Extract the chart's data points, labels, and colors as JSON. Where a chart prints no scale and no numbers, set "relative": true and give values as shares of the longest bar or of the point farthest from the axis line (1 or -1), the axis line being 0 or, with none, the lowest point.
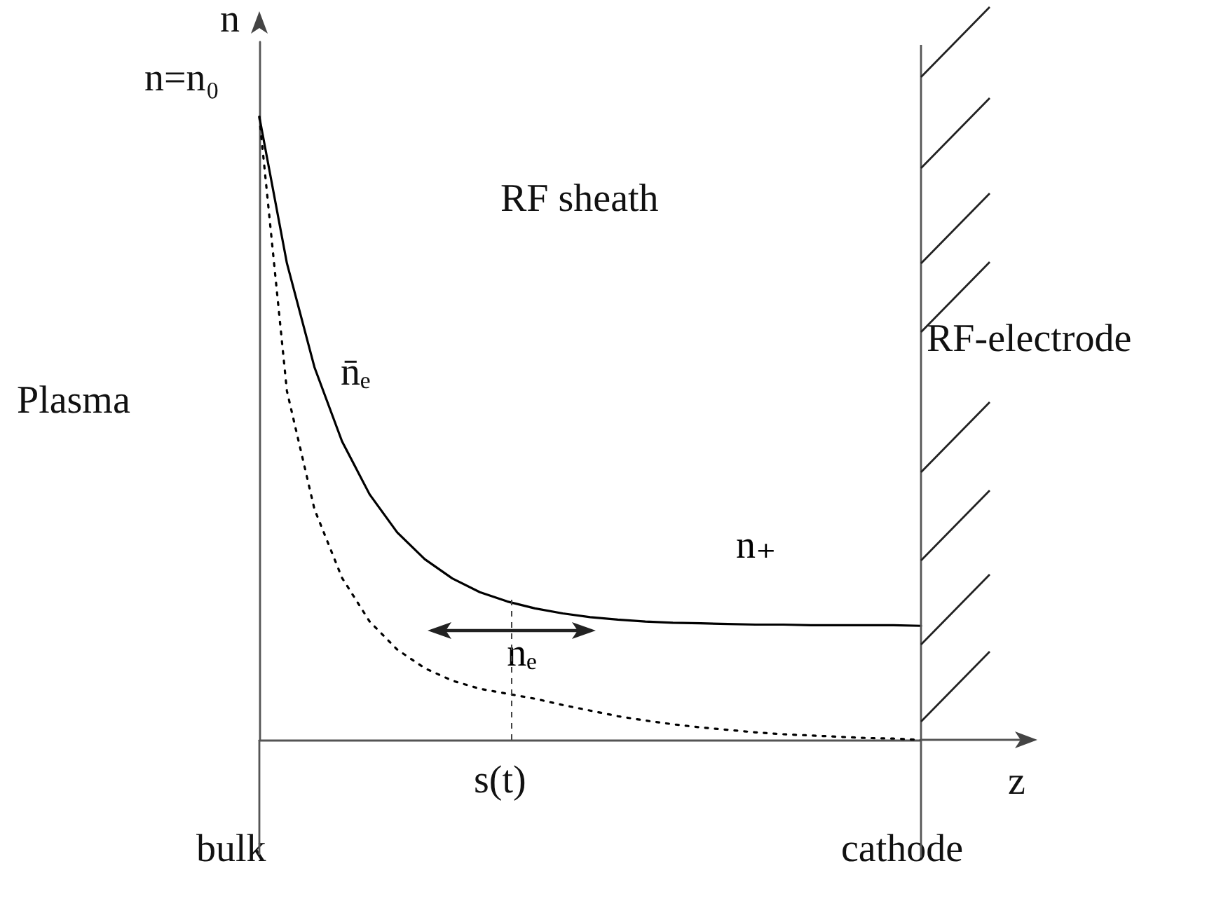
{
  "chart_data": {
    "type": "line",
    "relative": true,
    "xlabel": "z",
    "ylabel": "n",
    "legend": false,
    "grid": false,
    "marker": "none",
    "categories": [
      null,
      null,
      null,
      null,
      null,
      null,
      null,
      null,
      null,
      null,
      null,
      null,
      null,
      null,
      null,
      null,
      null,
      null,
      null,
      null,
      null,
      null,
      null,
      null,
      null
    ],
    "series": [
      {
        "name": "n₊",
        "color": "#000000",
        "line_style": "solid",
        "values": [
          1.0,
          0.765,
          0.598,
          0.479,
          0.394,
          0.333,
          0.29,
          0.259,
          0.237,
          0.222,
          0.211,
          0.203,
          0.197,
          0.193,
          0.19,
          0.188,
          0.187,
          0.186,
          0.185,
          0.185,
          0.184,
          0.184,
          0.184,
          0.184,
          0.183
        ]
      },
      {
        "name": "nₑ",
        "color": "#000000",
        "line_style": "dotted",
        "values": [
          1.0,
          0.56,
          0.37,
          0.26,
          0.19,
          0.145,
          0.115,
          0.095,
          0.082,
          0.074,
          0.066,
          0.056,
          0.047,
          0.038,
          0.031,
          0.025,
          0.02,
          0.016,
          0.012,
          0.009,
          0.007,
          0.005,
          0.003,
          0.002,
          0
        ]
      }
    ],
    "annotations": [
      "n=n₀",
      "RF sheath",
      "Plasma",
      "RF-electrode",
      "n̄ₑ",
      "s(t)",
      "bulk",
      "cathode"
    ]
  }
}
